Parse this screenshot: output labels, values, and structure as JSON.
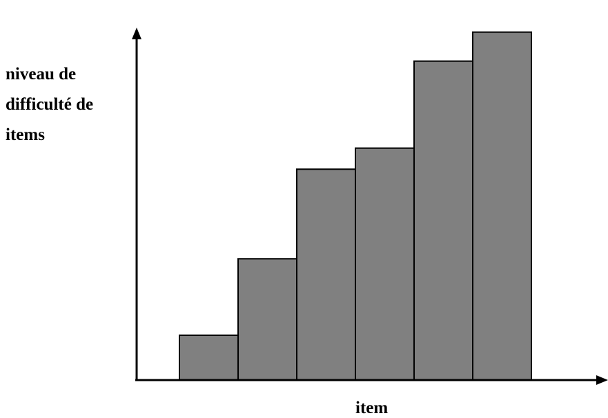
{
  "chart_data": {
    "type": "bar",
    "title": "",
    "ylabel_lines": [
      "niveau de",
      "difficulté de",
      "items"
    ],
    "xlabel": "item",
    "categories": [
      "",
      "",
      "",
      "",
      "",
      ""
    ],
    "values": [
      17,
      46,
      80,
      88,
      121,
      132
    ],
    "ylim": [
      0,
      140
    ],
    "grid": false,
    "legend": "none",
    "colors": {
      "bar_fill": "#808080",
      "bar_stroke": "#000000",
      "axis": "#000000"
    }
  }
}
